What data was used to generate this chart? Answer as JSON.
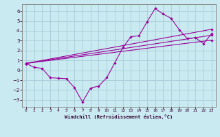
{
  "xlabel": "Windchill (Refroidissement éolien,°C)",
  "bg_color": "#c8eaf0",
  "grid_color": "#a8ccd8",
  "line_color": "#990099",
  "xlim": [
    -0.5,
    23.5
  ],
  "ylim": [
    -3.7,
    6.7
  ],
  "xticks": [
    0,
    1,
    2,
    3,
    4,
    5,
    6,
    7,
    8,
    9,
    10,
    11,
    12,
    13,
    14,
    15,
    16,
    17,
    18,
    19,
    20,
    21,
    22,
    23
  ],
  "yticks": [
    -3,
    -2,
    -1,
    0,
    1,
    2,
    3,
    4,
    5,
    6
  ],
  "main_x": [
    0,
    1,
    2,
    3,
    4,
    5,
    6,
    7,
    8,
    9,
    10,
    11,
    12,
    13,
    14,
    15,
    16,
    17,
    18,
    19,
    20,
    21,
    22,
    23
  ],
  "main_y": [
    0.7,
    0.3,
    0.2,
    -0.75,
    -0.8,
    -0.85,
    -1.75,
    -3.2,
    -1.8,
    -1.6,
    -0.75,
    0.75,
    2.3,
    3.4,
    3.5,
    4.9,
    6.25,
    5.7,
    5.25,
    4.1,
    3.2,
    3.3,
    2.7,
    3.7
  ],
  "trend1_x": [
    0,
    23
  ],
  "trend1_y": [
    0.7,
    4.15
  ],
  "trend2_x": [
    0,
    23
  ],
  "trend2_y": [
    0.7,
    3.55
  ],
  "trend3_x": [
    0,
    23
  ],
  "trend3_y": [
    0.7,
    3.05
  ]
}
